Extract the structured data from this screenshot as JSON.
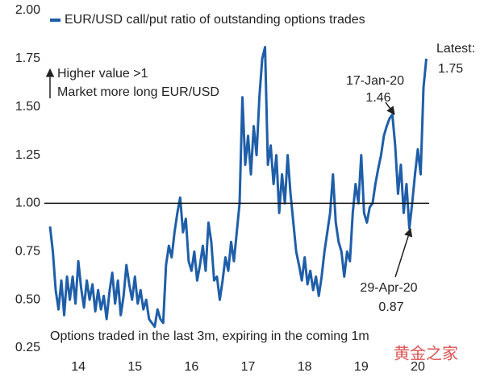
{
  "chart_data": {
    "type": "line",
    "legend": "top-left",
    "x": [
      14,
      14.05,
      14.1,
      14.15,
      14.2,
      14.25,
      14.3,
      14.35,
      14.4,
      14.45,
      14.5,
      14.55,
      14.6,
      14.65,
      14.7,
      14.75,
      14.8,
      14.85,
      14.9,
      14.95,
      15,
      15.05,
      15.1,
      15.15,
      15.2,
      15.25,
      15.3,
      15.35,
      15.4,
      15.45,
      15.5,
      15.55,
      15.6,
      15.65,
      15.7,
      15.75,
      15.8,
      15.85,
      15.9,
      15.95,
      16,
      16.05,
      16.1,
      16.15,
      16.2,
      16.25,
      16.3,
      16.35,
      16.4,
      16.45,
      16.5,
      16.55,
      16.6,
      16.65,
      16.7,
      16.75,
      16.8,
      16.85,
      16.9,
      16.95,
      17,
      17.05,
      17.1,
      17.15,
      17.2,
      17.25,
      17.3,
      17.35,
      17.4,
      17.45,
      17.5,
      17.55,
      17.6,
      17.65,
      17.7,
      17.75,
      17.8,
      17.85,
      17.9,
      17.95,
      18,
      18.05,
      18.1,
      18.15,
      18.2,
      18.25,
      18.3,
      18.35,
      18.4,
      18.45,
      18.5,
      18.55,
      18.6,
      18.65,
      18.7,
      18.75,
      18.8,
      18.85,
      18.9,
      18.95,
      19,
      19.05,
      19.1,
      19.15,
      19.2,
      19.25,
      19.3,
      19.35,
      19.4,
      19.45,
      19.5,
      19.55,
      19.6,
      19.65,
      19.7,
      19.75,
      19.8,
      19.85,
      19.9,
      19.95,
      20,
      20.05,
      20.1,
      20.15,
      20.2,
      20.25,
      20.3,
      20.35,
      20.4,
      20.45,
      20.5,
      20.55,
      20.6,
      20.65
    ],
    "series": [
      {
        "name": "EUR/USD call/put ratio of outstanding options trades",
        "color": "#1f5ea8",
        "values": [
          0.88,
          0.75,
          0.55,
          0.45,
          0.6,
          0.42,
          0.62,
          0.5,
          0.62,
          0.48,
          0.7,
          0.56,
          0.46,
          0.6,
          0.5,
          0.58,
          0.44,
          0.55,
          0.45,
          0.52,
          0.4,
          0.54,
          0.64,
          0.48,
          0.6,
          0.42,
          0.52,
          0.68,
          0.58,
          0.5,
          0.62,
          0.48,
          0.55,
          0.45,
          0.5,
          0.4,
          0.38,
          0.36,
          0.45,
          0.4,
          0.38,
          0.68,
          0.78,
          0.72,
          0.85,
          0.95,
          1.03,
          0.85,
          0.92,
          0.7,
          0.65,
          0.75,
          0.6,
          0.68,
          0.78,
          0.65,
          0.9,
          0.8,
          0.6,
          0.62,
          0.5,
          0.6,
          0.72,
          0.65,
          0.8,
          0.7,
          0.85,
          1.0,
          1.55,
          1.2,
          1.35,
          1.15,
          1.4,
          1.25,
          1.55,
          1.75,
          1.81,
          1.2,
          1.3,
          1.1,
          1.25,
          0.95,
          1.15,
          1.0,
          1.25,
          1.05,
          0.9,
          0.75,
          0.68,
          0.6,
          0.72,
          0.58,
          0.65,
          0.55,
          0.62,
          0.52,
          0.62,
          0.75,
          0.85,
          0.95,
          1.15,
          0.9,
          0.8,
          0.75,
          0.62,
          0.75,
          0.7,
          0.95,
          1.1,
          1.0,
          1.25,
          0.95,
          0.9,
          0.98,
          1.0,
          1.1,
          1.18,
          1.25,
          1.35,
          1.4,
          1.44,
          1.46,
          1.3,
          1.05,
          1.2,
          0.95,
          1.1,
          0.87,
          1.0,
          1.15,
          1.28,
          1.15,
          1.6,
          1.75
        ]
      }
    ],
    "xlim": [
      13.9,
      20.7
    ],
    "xticks": [
      {
        "value": 14.5,
        "label": "14"
      },
      {
        "value": 15.5,
        "label": "15"
      },
      {
        "value": 16.5,
        "label": "16"
      },
      {
        "value": 17.5,
        "label": "17"
      },
      {
        "value": 18.5,
        "label": "18"
      },
      {
        "value": 19.5,
        "label": "19"
      },
      {
        "value": 20.5,
        "label": "20"
      }
    ],
    "ylim": [
      0.25,
      2.0
    ],
    "yticks": [
      {
        "value": 0.25,
        "label": "0.25"
      },
      {
        "value": 0.5,
        "label": "0.50"
      },
      {
        "value": 0.75,
        "label": "0.75"
      },
      {
        "value": 1,
        "label": "1.00"
      },
      {
        "value": 1.25,
        "label": "1.25"
      },
      {
        "value": 1.5,
        "label": "1.50"
      },
      {
        "value": 1.75,
        "label": "1.75"
      },
      {
        "value": 2,
        "label": "2.00"
      }
    ],
    "reference_line": 1,
    "annotations": [
      "Higher value >1",
      "Market more long EUR/USD",
      "17-Jan-20",
      "1.46",
      "Latest:",
      "1.75",
      "29-Apr-20",
      "0.87"
    ],
    "footnote": "Options traded in the last 3m, expiring in the coming 1m",
    "watermark": "黄金之家"
  }
}
